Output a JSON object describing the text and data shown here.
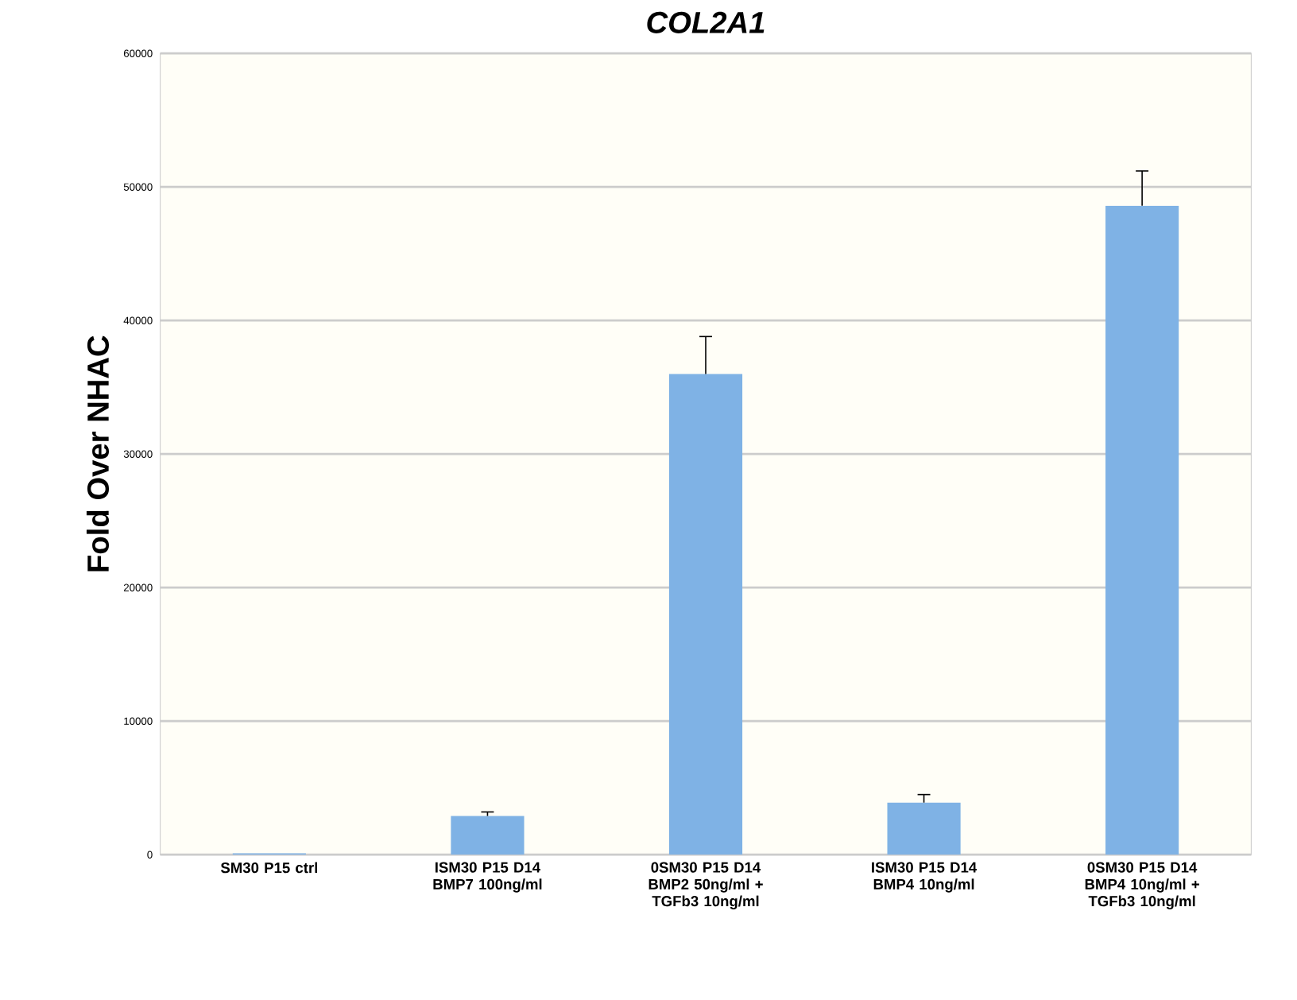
{
  "chart_data": {
    "type": "bar",
    "title": "COL2A1",
    "ylabel": "Fold Over NHAC",
    "categories": [
      "SM30 P15 ctrl",
      "ISM30 P15 D14 BMP7 100ng/ml",
      "0SM30 P15 D14 BMP2 50ng/ml + TGFb3 10ng/ml",
      "ISM30 P15 D14 BMP4 10ng/ml",
      "0SM30 P15 D14 BMP4 10ng/ml + TGFb3 10ng/ml"
    ],
    "values": [
      100,
      2900,
      36000,
      3900,
      48600
    ],
    "errors": [
      null,
      [
        2900,
        3200
      ],
      [
        36000,
        38800
      ],
      [
        3900,
        4500
      ],
      [
        48600,
        51200
      ]
    ],
    "color": "#7fb2e5",
    "ylim": [
      0,
      60000
    ],
    "yticks": [
      0,
      10000,
      20000,
      30000,
      40000,
      50000,
      60000
    ],
    "grid": "y"
  }
}
